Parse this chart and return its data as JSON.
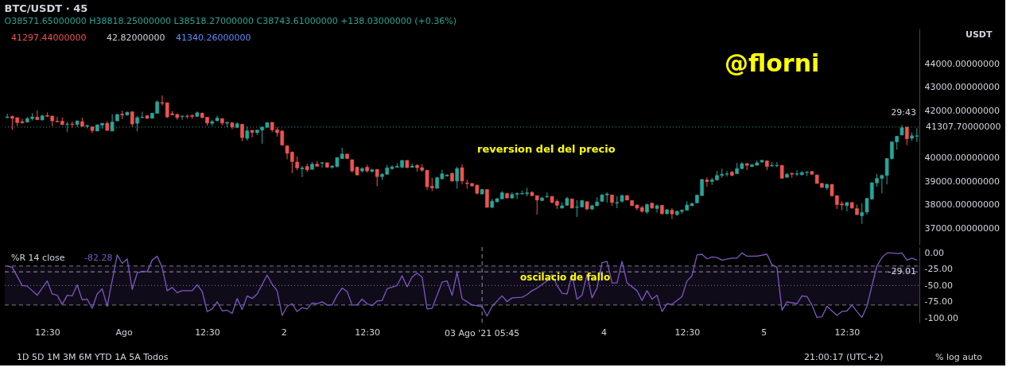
{
  "chart_data": [
    {
      "type": "candlestick",
      "title": "BTC/USDT · 45",
      "subtitle": "O38571.65000000 H38818.25000000 L38518.27000000 C38743.61000000 +138.03000000 (+0.36%)",
      "categories": [
        null,
        null,
        null,
        null,
        null,
        null,
        null,
        null,
        null,
        null,
        null,
        null,
        null,
        null,
        null,
        null,
        null,
        null,
        null,
        null,
        null,
        null,
        null,
        null,
        null,
        null,
        null,
        null,
        null,
        null,
        null,
        null,
        null,
        null,
        null,
        null,
        null,
        null,
        null,
        null,
        null,
        null,
        null,
        null,
        null,
        null,
        null,
        null,
        null,
        null,
        null,
        null,
        null,
        null,
        null,
        null,
        null,
        null,
        null,
        null,
        null,
        null,
        null,
        null,
        null,
        null,
        null,
        null,
        null,
        null,
        null,
        null,
        null,
        null,
        null,
        null,
        null,
        null,
        null,
        null,
        null,
        null,
        null,
        null,
        null,
        null,
        null,
        null,
        null,
        null,
        null,
        null,
        null,
        null,
        null,
        null,
        null,
        null,
        null,
        null,
        null,
        null,
        null,
        null,
        null,
        null,
        null,
        null,
        null,
        null,
        null,
        null,
        null,
        null,
        null,
        null,
        null,
        null,
        null,
        null,
        null,
        null,
        null,
        null,
        null,
        null,
        null,
        null,
        null,
        null,
        null,
        null,
        null,
        null,
        null,
        null,
        null,
        null,
        null,
        null,
        null,
        null,
        null,
        null,
        null,
        null,
        null,
        null,
        null,
        null,
        null,
        null,
        null,
        null,
        null,
        null,
        null,
        null,
        null,
        null,
        null,
        null,
        null,
        null,
        null,
        null,
        null,
        null,
        null,
        null,
        null,
        null,
        null,
        null,
        null,
        null,
        null,
        null,
        null,
        null,
        null,
        null,
        null
      ],
      "ylim": [
        36300,
        45500
      ],
      "yticks": [
        {
          "value": 37000,
          "label": "37000.00000000"
        },
        {
          "value": 38000,
          "label": "38000.00000000"
        },
        {
          "value": 39000,
          "label": "39000.00000000"
        },
        {
          "value": 40000,
          "label": "40000.00000000"
        },
        {
          "value": 42000,
          "label": "42000.00000000"
        },
        {
          "value": 43000,
          "label": "43000.00000000"
        },
        {
          "value": 44000,
          "label": "44000.00000000"
        }
      ],
      "tick_labels": "y",
      "series": [
        {
          "ohlc": [
            [
              41710,
              41880,
              41690,
              41740
            ],
            [
              41760,
              41800,
              41190,
              41680
            ],
            [
              41710,
              41710,
              41350,
              41500
            ],
            [
              41540,
              41660,
              41450,
              41490
            ],
            [
              41520,
              41740,
              41500,
              41670
            ],
            [
              41670,
              41900,
              41590,
              41740
            ],
            [
              41730,
              42010,
              41620,
              41620
            ],
            [
              41610,
              41830,
              41590,
              41790
            ],
            [
              41800,
              41930,
              41730,
              41770
            ],
            [
              41780,
              41780,
              41350,
              41570
            ],
            [
              41560,
              41750,
              41520,
              41530
            ],
            [
              41560,
              41720,
              41400,
              41410
            ],
            [
              41420,
              41540,
              41100,
              41440
            ],
            [
              41440,
              41540,
              41280,
              41420
            ],
            [
              41420,
              41590,
              41310,
              41570
            ],
            [
              41540,
              41710,
              41330,
              41340
            ],
            [
              41340,
              41420,
              41250,
              41370
            ],
            [
              41320,
              41320,
              41050,
              41160
            ],
            [
              41140,
              41420,
              41130,
              41400
            ],
            [
              41390,
              41470,
              41230,
              41470
            ],
            [
              41470,
              41560,
              41140,
              41170
            ],
            [
              41140,
              41860,
              41140,
              41520
            ],
            [
              41570,
              41850,
              41570,
              41850
            ],
            [
              41860,
              42010,
              41650,
              41820
            ],
            [
              41820,
              41970,
              41800,
              41940
            ],
            [
              41960,
              41960,
              41310,
              41440
            ],
            [
              41470,
              41780,
              41130,
              41710
            ],
            [
              41710,
              41960,
              41690,
              41730
            ],
            [
              41790,
              41810,
              41660,
              41680
            ],
            [
              41680,
              41900,
              41680,
              41900
            ],
            [
              41890,
              42450,
              41890,
              42380
            ],
            [
              42350,
              42650,
              42220,
              42320
            ],
            [
              42340,
              42360,
              41690,
              41740
            ],
            [
              41880,
              41990,
              41800,
              41830
            ],
            [
              41850,
              41880,
              41620,
              41710
            ],
            [
              41760,
              41800,
              41620,
              41780
            ],
            [
              41780,
              41840,
              41660,
              41760
            ],
            [
              41800,
              41850,
              41660,
              41760
            ],
            [
              41760,
              41970,
              41740,
              41920
            ],
            [
              41900,
              41930,
              41690,
              41710
            ],
            [
              41730,
              41730,
              41370,
              41480
            ],
            [
              41470,
              41610,
              41360,
              41540
            ],
            [
              41580,
              41800,
              41540,
              41690
            ],
            [
              41670,
              41670,
              41380,
              41480
            ],
            [
              41470,
              41560,
              41310,
              41500
            ],
            [
              41490,
              41490,
              41220,
              41310
            ],
            [
              41290,
              41520,
              41260,
              41450
            ],
            [
              41430,
              41430,
              40710,
              40860
            ],
            [
              40830,
              41340,
              40730,
              41150
            ],
            [
              41170,
              41170,
              40860,
              41080
            ],
            [
              41070,
              41180,
              40970,
              41180
            ],
            [
              41180,
              41310,
              40590,
              41310
            ],
            [
              41300,
              41500,
              41260,
              41500
            ],
            [
              41510,
              41510,
              41090,
              41190
            ],
            [
              41190,
              41310,
              40900,
              41070
            ],
            [
              41140,
              41180,
              40520,
              40540
            ],
            [
              40510,
              40510,
              39940,
              40190
            ],
            [
              40240,
              40270,
              39350,
              39840
            ],
            [
              39820,
              40060,
              39470,
              39570
            ],
            [
              39530,
              39650,
              39180,
              39570
            ],
            [
              39630,
              39750,
              39390,
              39490
            ],
            [
              39510,
              39820,
              39490,
              39730
            ],
            [
              39730,
              39870,
              39630,
              39640
            ],
            [
              39770,
              39820,
              39580,
              39790
            ],
            [
              39790,
              39790,
              39580,
              39600
            ],
            [
              39600,
              39680,
              39540,
              39650
            ],
            [
              39630,
              40010,
              39580,
              40010
            ],
            [
              39970,
              40430,
              39950,
              40160
            ],
            [
              40160,
              40160,
              39950,
              39970
            ],
            [
              39920,
              39920,
              39370,
              39440
            ],
            [
              39600,
              39630,
              39250,
              39270
            ],
            [
              39440,
              39600,
              39370,
              39540
            ],
            [
              39600,
              39700,
              39370,
              39440
            ],
            [
              39420,
              39540,
              39370,
              39490
            ],
            [
              39510,
              39510,
              38790,
              39200
            ],
            [
              39200,
              39350,
              39060,
              39300
            ],
            [
              39300,
              39700,
              39270,
              39570
            ],
            [
              39540,
              39680,
              39490,
              39610
            ],
            [
              39600,
              39770,
              39570,
              39640
            ],
            [
              39600,
              39890,
              39560,
              39890
            ],
            [
              39890,
              39890,
              39570,
              39580
            ],
            [
              39600,
              39760,
              39580,
              39650
            ],
            [
              39680,
              39730,
              39410,
              39580
            ],
            [
              39580,
              39730,
              39410,
              39470
            ],
            [
              39470,
              39470,
              38630,
              38770
            ],
            [
              38790,
              39150,
              38580,
              38720
            ],
            [
              38700,
              39200,
              38700,
              39150
            ],
            [
              39110,
              39490,
              39060,
              39320
            ],
            [
              39230,
              39300,
              39200,
              39270
            ],
            [
              39340,
              39370,
              38990,
              39010
            ],
            [
              39010,
              39630,
              38680,
              39540
            ],
            [
              39580,
              39730,
              38870,
              39010
            ],
            [
              38930,
              39060,
              38680,
              38900
            ],
            [
              38910,
              38910,
              38780,
              38800
            ],
            [
              38840,
              38840,
              38440,
              38490
            ],
            [
              38460,
              38680,
              38440,
              38650
            ],
            [
              38650,
              38650,
              37890,
              37890
            ],
            [
              37890,
              38250,
              37860,
              38150
            ],
            [
              38130,
              38290,
              38100,
              38260
            ],
            [
              38250,
              38580,
              38250,
              38510
            ],
            [
              38480,
              38510,
              38290,
              38290
            ],
            [
              38290,
              38530,
              38250,
              38440
            ],
            [
              38440,
              38530,
              38250,
              38480
            ],
            [
              38460,
              38610,
              38440,
              38480
            ],
            [
              38470,
              38720,
              38360,
              38510
            ],
            [
              38530,
              38580,
              38360,
              38390
            ],
            [
              38390,
              38390,
              37580,
              38200
            ],
            [
              38180,
              38340,
              38150,
              38290
            ],
            [
              38340,
              38530,
              38290,
              38360
            ],
            [
              38360,
              38360,
              38070,
              38100
            ],
            [
              38150,
              38230,
              37820,
              37980
            ],
            [
              37860,
              38100,
              37840,
              37960
            ],
            [
              37980,
              38340,
              37960,
              38270
            ],
            [
              38250,
              38250,
              37860,
              37860
            ],
            [
              37890,
              38200,
              37480,
              37910
            ],
            [
              37910,
              38200,
              37880,
              38180
            ],
            [
              38130,
              38150,
              37770,
              37820
            ],
            [
              37820,
              38010,
              37770,
              37960
            ],
            [
              37960,
              38320,
              37940,
              38120
            ],
            [
              38150,
              38460,
              38130,
              38420
            ],
            [
              38420,
              38530,
              38100,
              38460
            ],
            [
              38420,
              38420,
              37960,
              38100
            ],
            [
              38070,
              38360,
              37860,
              38100
            ],
            [
              38150,
              38440,
              38100,
              38390
            ],
            [
              38390,
              38420,
              38200,
              38200
            ],
            [
              38180,
              38180,
              37960,
              37960
            ],
            [
              37990,
              38010,
              37770,
              37860
            ],
            [
              37880,
              37960,
              37670,
              37720
            ],
            [
              37690,
              38050,
              37620,
              38010
            ],
            [
              38070,
              38070,
              37840,
              37860
            ],
            [
              37840,
              38010,
              37670,
              37960
            ],
            [
              37980,
              37980,
              37580,
              37620
            ],
            [
              37620,
              37820,
              37580,
              37790
            ],
            [
              37770,
              37860,
              37390,
              37610
            ],
            [
              37580,
              37770,
              37530,
              37720
            ],
            [
              37720,
              37810,
              37620,
              37770
            ],
            [
              37770,
              38150,
              37750,
              37990
            ],
            [
              37960,
              38100,
              37940,
              38050
            ],
            [
              38080,
              38440,
              38080,
              38410
            ],
            [
              38390,
              39080,
              38390,
              39080
            ],
            [
              39060,
              39170,
              38770,
              38990
            ],
            [
              38990,
              39150,
              38840,
              39060
            ],
            [
              39060,
              39440,
              39030,
              39250
            ],
            [
              39250,
              39540,
              39150,
              39300
            ],
            [
              39300,
              39440,
              39200,
              39320
            ],
            [
              39390,
              39440,
              39220,
              39250
            ],
            [
              39320,
              39780,
              39320,
              39540
            ],
            [
              39540,
              39820,
              39510,
              39750
            ],
            [
              39750,
              39790,
              39470,
              39680
            ],
            [
              39630,
              39730,
              39600,
              39710
            ],
            [
              39680,
              39890,
              39680,
              39790
            ],
            [
              39820,
              39920,
              39790,
              39890
            ],
            [
              39870,
              39890,
              39470,
              39630
            ],
            [
              39650,
              39820,
              39630,
              39680
            ],
            [
              39660,
              39820,
              39600,
              39680
            ],
            [
              39680,
              39680,
              39110,
              39130
            ],
            [
              39170,
              39350,
              39150,
              39300
            ],
            [
              39340,
              39370,
              39150,
              39300
            ],
            [
              39300,
              39470,
              39220,
              39320
            ],
            [
              39280,
              39440,
              39250,
              39370
            ],
            [
              39370,
              39440,
              39220,
              39390
            ],
            [
              39420,
              39440,
              39270,
              39300
            ],
            [
              39270,
              39270,
              38900,
              38910
            ],
            [
              38910,
              38930,
              38720,
              38740
            ],
            [
              38720,
              38900,
              38630,
              38870
            ],
            [
              38870,
              38870,
              38340,
              38390
            ],
            [
              38390,
              38390,
              37820,
              38010
            ],
            [
              38040,
              38150,
              37770,
              37990
            ],
            [
              37960,
              38100,
              37720,
              38100
            ],
            [
              38100,
              38100,
              37840,
              37860
            ],
            [
              37840,
              38010,
              37560,
              37580
            ],
            [
              37530,
              38070,
              37190,
              37670
            ],
            [
              37690,
              38290,
              37580,
              38270
            ],
            [
              38250,
              38940,
              38200,
              38940
            ],
            [
              38930,
              39320,
              38770,
              39120
            ],
            [
              39120,
              39300,
              38490,
              39250
            ],
            [
              39250,
              39970,
              38870,
              39970
            ],
            [
              39970,
              40680,
              39920,
              40680
            ],
            [
              40680,
              40920,
              40350,
              40920
            ],
            [
              40970,
              41400,
              40970,
              41280
            ],
            [
              41310,
              41310,
              40540,
              40810
            ],
            [
              40830,
              41070,
              40730,
              40940
            ],
            [
              40920,
              41260,
              40680,
              40940
            ]
          ],
          "colors": [
            "#26a69a",
            "#ef5350",
            "#ef5350",
            "#ef5350",
            "#26a69a",
            "#26a69a",
            "#ef5350",
            "#26a69a",
            "#ef5350",
            "#ef5350",
            "#ef5350",
            "#ef5350",
            "#26a69a",
            "#ef5350",
            "#26a69a",
            "#ef5350",
            "#26a69a",
            "#ef5350",
            "#26a69a",
            "#26a69a",
            "#ef5350",
            "#26a69a",
            "#26a69a",
            "#ef5350",
            "#26a69a",
            "#ef5350",
            "#26a69a",
            "#26a69a",
            "#ef5350",
            "#26a69a",
            "#26a69a",
            "#ef5350",
            "#ef5350",
            "#ef5350",
            "#ef5350",
            "#26a69a",
            "#ef5350",
            "#ef5350",
            "#26a69a",
            "#ef5350",
            "#ef5350",
            "#26a69a",
            "#26a69a",
            "#ef5350",
            "#26a69a",
            "#ef5350",
            "#26a69a",
            "#ef5350",
            "#26a69a",
            "#ef5350",
            "#26a69a",
            "#26a69a",
            "#26a69a",
            "#ef5350",
            "#ef5350",
            "#ef5350",
            "#ef5350",
            "#ef5350",
            "#ef5350",
            "#26a69a",
            "#ef5350",
            "#26a69a",
            "#ef5350",
            "#26a69a",
            "#ef5350",
            "#26a69a",
            "#26a69a",
            "#26a69a",
            "#ef5350",
            "#ef5350",
            "#ef5350",
            "#26a69a",
            "#ef5350",
            "#26a69a",
            "#ef5350",
            "#26a69a",
            "#26a69a",
            "#26a69a",
            "#26a69a",
            "#26a69a",
            "#ef5350",
            "#26a69a",
            "#ef5350",
            "#ef5350",
            "#ef5350",
            "#ef5350",
            "#26a69a",
            "#26a69a",
            "#26a69a",
            "#ef5350",
            "#26a69a",
            "#ef5350",
            "#ef5350",
            "#ef5350",
            "#ef5350",
            "#26a69a",
            "#ef5350",
            "#26a69a",
            "#26a69a",
            "#26a69a",
            "#ef5350",
            "#26a69a",
            "#26a69a",
            "#26a69a",
            "#26a69a",
            "#ef5350",
            "#ef5350",
            "#26a69a",
            "#26a69a",
            "#ef5350",
            "#ef5350",
            "#26a69a",
            "#26a69a",
            "#ef5350",
            "#26a69a",
            "#26a69a",
            "#ef5350",
            "#26a69a",
            "#26a69a",
            "#26a69a",
            "#26a69a",
            "#ef5350",
            "#26a69a",
            "#26a69a",
            "#ef5350",
            "#ef5350",
            "#ef5350",
            "#ef5350",
            "#26a69a",
            "#ef5350",
            "#26a69a",
            "#ef5350",
            "#26a69a",
            "#ef5350",
            "#26a69a",
            "#26a69a",
            "#26a69a",
            "#26a69a",
            "#26a69a",
            "#26a69a",
            "#ef5350",
            "#26a69a",
            "#26a69a",
            "#26a69a",
            "#26a69a",
            "#ef5350",
            "#26a69a",
            "#26a69a",
            "#ef5350",
            "#26a69a",
            "#26a69a",
            "#26a69a",
            "#ef5350",
            "#26a69a",
            "#26a69a",
            "#ef5350",
            "#26a69a",
            "#ef5350",
            "#26a69a",
            "#26a69a",
            "#26a69a",
            "#ef5350",
            "#ef5350",
            "#ef5350",
            "#26a69a",
            "#ef5350",
            "#ef5350",
            "#ef5350",
            "#26a69a",
            "#ef5350",
            "#ef5350",
            "#26a69a",
            "#26a69a",
            "#26a69a",
            "#26a69a",
            "#26a69a",
            "#26a69a",
            "#26a69a",
            "#26a69a",
            "#26a69a",
            "#ef5350",
            "#26a69a",
            "#26a69a"
          ]
        }
      ],
      "ref_lines": [
        {
          "axis": "y",
          "value": 41307.7,
          "label": "41307.70000000",
          "color": "#26a69a",
          "line_style": "dotted"
        }
      ],
      "annotations": [
        "41297.44000000",
        "42.82000000",
        "41340.26000000",
        "@florni",
        "reversion del del precio",
        "USDT",
        "29:43"
      ]
    },
    {
      "type": "line",
      "title": "%R 14 close",
      "xlim": [
        "2021-07-31T06:08",
        "2021-08-05T23:22"
      ],
      "xticks": [
        {
          "value": "2021-07-31T12:30",
          "label": "12:30"
        },
        {
          "value": "2021-08-01T00:00",
          "label": "Ago"
        },
        {
          "value": "2021-08-01T12:30",
          "label": "12:30"
        },
        {
          "value": "2021-08-02T00:00",
          "label": "2"
        },
        {
          "value": "2021-08-02T12:30",
          "label": "12:30"
        },
        {
          "value": "2021-08-04T00:00",
          "label": "4"
        },
        {
          "value": "2021-08-04T12:30",
          "label": "12:30"
        },
        {
          "value": "2021-08-05T00:00",
          "label": "5"
        },
        {
          "value": "2021-08-05T12:30",
          "label": "12:30"
        }
      ],
      "ylim": [
        -107,
        9
      ],
      "yticks": [
        {
          "value": 0,
          "label": "0.00"
        },
        {
          "value": -25,
          "label": "-25.00"
        },
        {
          "value": -50,
          "label": "-50.00"
        },
        {
          "value": -75,
          "label": "-75.00"
        },
        {
          "value": -100,
          "label": "-100.00"
        }
      ],
      "series": [
        {
          "color": "#7e57c2",
          "x": [
            "2021-07-31T06:30",
            "2021-07-31T07:15",
            "2021-07-31T08:45",
            "2021-07-31T09:30",
            "2021-07-31T11:00",
            "2021-07-31T12:30",
            "2021-07-31T13:15",
            "2021-07-31T14:00",
            "2021-07-31T14:45",
            "2021-07-31T15:30",
            "2021-07-31T16:15",
            "2021-07-31T17:00",
            "2021-07-31T17:45",
            "2021-07-31T18:30",
            "2021-07-31T19:15",
            "2021-07-31T20:00",
            "2021-07-31T20:45",
            "2021-07-31T21:30",
            "2021-07-31T23:00",
            "2021-07-31T23:45",
            "2021-08-01T00:30",
            "2021-08-01T01:15",
            "2021-08-01T02:00",
            "2021-08-01T02:45",
            "2021-08-01T03:30",
            "2021-08-01T04:15",
            "2021-08-01T05:00",
            "2021-08-01T05:45",
            "2021-08-01T06:30",
            "2021-08-01T07:15",
            "2021-08-01T08:00",
            "2021-08-01T08:45",
            "2021-08-01T09:30",
            "2021-08-01T10:15",
            "2021-08-01T11:00",
            "2021-08-01T11:45",
            "2021-08-01T12:30",
            "2021-08-01T13:15",
            "2021-08-01T14:00",
            "2021-08-01T14:45",
            "2021-08-01T15:30",
            "2021-08-01T16:15",
            "2021-08-01T17:00",
            "2021-08-01T17:45",
            "2021-08-01T18:30",
            "2021-08-01T19:15",
            "2021-08-01T20:00",
            "2021-08-01T21:30",
            "2021-08-01T22:15",
            "2021-08-01T23:00",
            "2021-08-01T23:45",
            "2021-08-02T00:30",
            "2021-08-02T01:15",
            "2021-08-02T02:00",
            "2021-08-02T02:45",
            "2021-08-02T03:30",
            "2021-08-02T04:15",
            "2021-08-02T05:00",
            "2021-08-02T05:45",
            "2021-08-02T06:30",
            "2021-08-02T07:15",
            "2021-08-02T08:00",
            "2021-08-02T08:45",
            "2021-08-02T09:30",
            "2021-08-02T10:15",
            "2021-08-02T11:00",
            "2021-08-02T11:45",
            "2021-08-02T12:30",
            "2021-08-02T13:15",
            "2021-08-02T14:00",
            "2021-08-02T14:45",
            "2021-08-02T15:30",
            "2021-08-02T17:00",
            "2021-08-02T17:45",
            "2021-08-02T18:30",
            "2021-08-02T19:15",
            "2021-08-02T20:00",
            "2021-08-02T20:45",
            "2021-08-02T21:30",
            "2021-08-02T22:15",
            "2021-08-02T23:45",
            "2021-08-03T00:30",
            "2021-08-03T01:15",
            "2021-08-03T02:00",
            "2021-08-03T02:45",
            "2021-08-03T04:15",
            "2021-08-03T05:45",
            "2021-08-03T06:30",
            "2021-08-03T07:15",
            "2021-08-03T08:45",
            "2021-08-03T09:30",
            "2021-08-03T10:15",
            "2021-08-03T11:45",
            "2021-08-03T12:30",
            "2021-08-03T13:15",
            "2021-08-03T14:00",
            "2021-08-03T15:30",
            "2021-08-03T16:15",
            "2021-08-03T17:00",
            "2021-08-03T17:45",
            "2021-08-03T18:30",
            "2021-08-03T19:15",
            "2021-08-03T20:00",
            "2021-08-03T20:45",
            "2021-08-03T21:30",
            "2021-08-03T22:15",
            "2021-08-03T23:00",
            "2021-08-03T23:45",
            "2021-08-04T00:30",
            "2021-08-04T01:15",
            "2021-08-04T02:00",
            "2021-08-04T02:45",
            "2021-08-04T03:30",
            "2021-08-04T05:00",
            "2021-08-04T05:45",
            "2021-08-04T06:30",
            "2021-08-04T07:15",
            "2021-08-04T08:00",
            "2021-08-04T08:45",
            "2021-08-04T09:30",
            "2021-08-04T10:15",
            "2021-08-04T11:45",
            "2021-08-04T12:30",
            "2021-08-04T13:15",
            "2021-08-04T14:00",
            "2021-08-04T14:45",
            "2021-08-04T15:30",
            "2021-08-04T16:15",
            "2021-08-04T17:00",
            "2021-08-04T17:45",
            "2021-08-04T19:15",
            "2021-08-04T20:00",
            "2021-08-04T20:45",
            "2021-08-04T21:30",
            "2021-08-04T23:00",
            "2021-08-05T00:30",
            "2021-08-05T01:15",
            "2021-08-05T02:00",
            "2021-08-05T02:45",
            "2021-08-05T03:30",
            "2021-08-05T05:00",
            "2021-08-05T05:45",
            "2021-08-05T06:30",
            "2021-08-05T07:15",
            "2021-08-05T08:00",
            "2021-08-05T08:45",
            "2021-08-05T09:30",
            "2021-08-05T11:00",
            "2021-08-05T11:45",
            "2021-08-05T12:30",
            "2021-08-05T13:15",
            "2021-08-05T14:00",
            "2021-08-05T14:45",
            "2021-08-05T15:30",
            "2021-08-05T16:15",
            "2021-08-05T17:00",
            "2021-08-05T17:45",
            "2021-08-05T18:30",
            "2021-08-05T19:15",
            "2021-08-05T20:00",
            "2021-08-05T20:45",
            "2021-08-05T21:30",
            "2021-08-05T22:15",
            "2021-08-05T23:00"
          ],
          "values": [
            -20,
            -22,
            -50,
            -51,
            -65,
            -43,
            -63,
            -65,
            -79,
            -65,
            -66,
            -49,
            -72,
            -71,
            -85,
            -63,
            -55,
            -82,
            -3,
            -16,
            -9,
            -56,
            -31,
            -28,
            -29,
            -11,
            -5,
            -22,
            -58,
            -53,
            -61,
            -58,
            -58,
            -58,
            -49,
            -59,
            -90,
            -86,
            -75,
            -89,
            -88,
            -93,
            -70,
            -87,
            -66,
            -70,
            -63,
            -34,
            -48,
            -58,
            -96,
            -82,
            -78,
            -90,
            -84,
            -86,
            -77,
            -78,
            -75,
            -80,
            -80,
            -65,
            -54,
            -59,
            -80,
            -80,
            -71,
            -78,
            -81,
            -74,
            -73,
            -55,
            -50,
            -35,
            -52,
            -37,
            -31,
            -37,
            -86,
            -85,
            -45,
            -43,
            -65,
            -30,
            -70,
            -80,
            -82.28,
            -97,
            -82,
            -66,
            -75,
            -69,
            -68,
            -64,
            -58,
            -54,
            -43,
            -33,
            -50,
            -62,
            -63,
            -33,
            -71,
            -65,
            -33,
            -69,
            -54,
            -15,
            -13,
            -46,
            -46,
            -13,
            -46,
            -58,
            -73,
            -58,
            -71,
            -65,
            -90,
            -78,
            -79,
            -67,
            -43,
            -35,
            -3,
            -2,
            -9,
            -6,
            -7,
            -11,
            -8,
            -8,
            0,
            -5,
            -5,
            -2,
            -18,
            -22,
            -88,
            -75,
            -78,
            -66,
            -67,
            -80,
            -99,
            -98,
            -82,
            -96,
            -90,
            -89,
            -80,
            -90,
            -99,
            -82,
            -50,
            -20,
            -7,
            0,
            0,
            -1,
            0,
            -11,
            -8,
            -11
          ]
        }
      ],
      "bands": [
        {
          "axis": "y",
          "from": -80,
          "to": -20,
          "color": "#7e57c2"
        }
      ],
      "ref_lines": [
        {
          "axis": "y",
          "value": -20,
          "color": "#787b86",
          "line_style": "dashed"
        },
        {
          "axis": "y",
          "value": -50,
          "color": "#787b86",
          "line_style": "dotted"
        },
        {
          "axis": "y",
          "value": -80,
          "color": "#787b86",
          "line_style": "dashed"
        },
        {
          "axis": "y",
          "value": -29.01,
          "label": "-29.01",
          "color": "#9598a1",
          "line_style": "dashed"
        },
        {
          "axis": "x",
          "value": "2021-08-03T05:45",
          "label": "03 Ago '21 05:45",
          "color": "#9598a1",
          "line_style": "dashed"
        }
      ],
      "annotations": [
        "-82.28",
        "oscilacio de fallo",
        "1D 5D 1M 3M 6M YTD 1A 5A Todos",
        "21:00:17 (UTC+2)",
        "% log auto"
      ]
    }
  ]
}
